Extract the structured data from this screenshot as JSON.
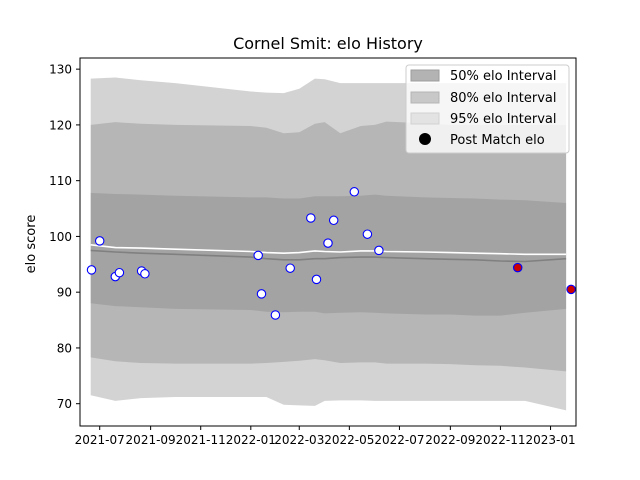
{
  "chart_data": {
    "type": "line",
    "title": "Cornel Smit: elo History",
    "xlabel": "",
    "ylabel": "elo score",
    "ylim": [
      66,
      132
    ],
    "xlim": [
      "2021-06-07",
      "2023-02-01"
    ],
    "x_ticks": [
      "2021-07",
      "2021-09",
      "2021-11",
      "2022-01",
      "2022-03",
      "2022-05",
      "2022-07",
      "2022-09",
      "2022-11",
      "2023-01"
    ],
    "y_ticks": [
      70,
      80,
      90,
      100,
      110,
      120,
      130
    ],
    "grid": false,
    "legend_position": "top-right",
    "legend": [
      {
        "label": "50% elo Interval",
        "kind": "band",
        "color": "#b3b3b3"
      },
      {
        "label": "80% elo Interval",
        "kind": "band",
        "color": "#c8c8c8"
      },
      {
        "label": "95% elo Interval",
        "kind": "band",
        "color": "#e3e3e3"
      },
      {
        "label": "Post Match elo",
        "kind": "marker",
        "color": "#000000"
      }
    ],
    "band_x": [
      "2021-06-20",
      "2021-07-20",
      "2021-08-20",
      "2021-10-01",
      "2022-01-01",
      "2022-01-20",
      "2022-02-10",
      "2022-03-01",
      "2022-03-20",
      "2022-04-01",
      "2022-04-20",
      "2022-05-15",
      "2022-06-01",
      "2022-06-15",
      "2022-08-01",
      "2022-09-01",
      "2022-10-01",
      "2022-11-01",
      "2022-12-01",
      "2023-01-20"
    ],
    "bands": {
      "p95_upper": [
        128.3,
        128.5,
        128.0,
        127.5,
        126.0,
        125.8,
        125.7,
        126.5,
        128.3,
        128.2,
        127.5,
        127.5,
        127.5,
        127.5,
        127.5,
        127.5,
        127.5,
        127.5,
        127.5,
        127.5
      ],
      "p80_upper": [
        120.0,
        120.5,
        120.2,
        120.0,
        119.8,
        119.5,
        118.5,
        118.7,
        120.2,
        120.5,
        118.5,
        119.8,
        120.0,
        120.6,
        120.3,
        120.0,
        120.0,
        120.0,
        120.0,
        120.0
      ],
      "p50_upper": [
        107.8,
        107.6,
        107.5,
        107.3,
        107.0,
        107.0,
        106.8,
        106.8,
        107.2,
        107.2,
        107.2,
        107.3,
        107.5,
        107.3,
        107.0,
        106.9,
        106.8,
        106.6,
        106.5,
        106.0
      ],
      "mean": [
        97.5,
        97.2,
        97.0,
        96.8,
        96.3,
        96.0,
        95.8,
        95.8,
        96.0,
        96.0,
        96.2,
        96.3,
        96.3,
        96.2,
        96.0,
        95.9,
        95.8,
        95.6,
        95.5,
        96.0
      ],
      "median": [
        98.5,
        98.0,
        97.9,
        97.7,
        97.3,
        97.1,
        97.0,
        97.1,
        97.4,
        97.3,
        97.2,
        97.4,
        97.4,
        97.3,
        97.2,
        97.1,
        97.0,
        96.9,
        96.8,
        96.8
      ],
      "p50_lower": [
        88.0,
        87.5,
        87.3,
        87.0,
        86.8,
        86.5,
        86.4,
        86.5,
        86.5,
        86.2,
        86.3,
        86.4,
        86.3,
        86.2,
        86.0,
        86.0,
        85.8,
        85.8,
        86.3,
        87.0
      ],
      "p80_lower": [
        78.3,
        77.6,
        77.3,
        77.2,
        77.2,
        77.3,
        77.5,
        77.7,
        78.0,
        77.8,
        77.3,
        77.4,
        77.4,
        77.2,
        77.2,
        77.1,
        76.9,
        76.8,
        76.5,
        75.8
      ],
      "p95_lower": [
        71.5,
        70.5,
        71.0,
        71.2,
        71.2,
        71.2,
        69.8,
        69.7,
        69.6,
        70.5,
        70.6,
        70.6,
        70.5,
        70.5,
        70.5,
        70.5,
        70.5,
        70.5,
        70.5,
        68.8
      ]
    },
    "points": [
      {
        "x": "2021-06-21",
        "y": 94.0,
        "final": false
      },
      {
        "x": "2021-07-01",
        "y": 99.2,
        "final": false
      },
      {
        "x": "2021-07-20",
        "y": 92.8,
        "final": false
      },
      {
        "x": "2021-07-25",
        "y": 93.5,
        "final": false
      },
      {
        "x": "2021-08-21",
        "y": 93.8,
        "final": false
      },
      {
        "x": "2021-08-25",
        "y": 93.3,
        "final": false
      },
      {
        "x": "2022-01-10",
        "y": 96.6,
        "final": false
      },
      {
        "x": "2022-01-14",
        "y": 89.7,
        "final": false
      },
      {
        "x": "2022-01-31",
        "y": 85.9,
        "final": false
      },
      {
        "x": "2022-02-18",
        "y": 94.3,
        "final": false
      },
      {
        "x": "2022-03-15",
        "y": 103.3,
        "final": false
      },
      {
        "x": "2022-03-22",
        "y": 92.3,
        "final": false
      },
      {
        "x": "2022-04-05",
        "y": 98.8,
        "final": false
      },
      {
        "x": "2022-04-12",
        "y": 102.9,
        "final": false
      },
      {
        "x": "2022-05-07",
        "y": 108.0,
        "final": false
      },
      {
        "x": "2022-05-23",
        "y": 100.4,
        "final": false
      },
      {
        "x": "2022-06-06",
        "y": 97.5,
        "final": false
      },
      {
        "x": "2022-11-22",
        "y": 94.4,
        "final": true
      },
      {
        "x": "2023-01-26",
        "y": 90.5,
        "final": true
      }
    ]
  }
}
